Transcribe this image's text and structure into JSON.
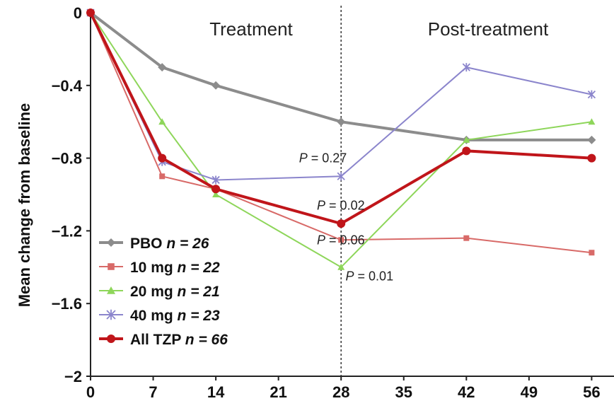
{
  "chart_data": {
    "type": "line",
    "ylabel": "Mean change from baseline",
    "x": [
      0,
      7,
      14,
      21,
      28,
      35,
      42,
      49,
      56
    ],
    "ylim": [
      -2,
      0
    ],
    "y_ticks": [
      0,
      -0.4,
      -0.8,
      -1.2,
      -1.6,
      -2
    ],
    "y_tick_labels": [
      "0",
      "−0.4",
      "−0.8",
      "−1.2",
      "−1.6",
      "−2"
    ],
    "region_labels": [
      "Treatment",
      "Post-treatment"
    ],
    "divider_x": 28,
    "series": [
      {
        "name": "PBO",
        "n_label": "n = 26",
        "color": "#8c8c8c",
        "marker": "diamond",
        "x": [
          0,
          8,
          14,
          28,
          42,
          56
        ],
        "values": [
          0,
          -0.3,
          -0.4,
          -0.6,
          -0.7,
          -0.7
        ]
      },
      {
        "name": "10 mg",
        "n_label": "n = 22",
        "color": "#d86a68",
        "marker": "square",
        "x": [
          0,
          8,
          14,
          28,
          42,
          56
        ],
        "values": [
          0,
          -0.9,
          -0.97,
          -1.25,
          -1.24,
          -1.32
        ]
      },
      {
        "name": "20 mg",
        "n_label": "n = 21",
        "color": "#8ed65a",
        "marker": "triangle",
        "x": [
          0,
          8,
          14,
          28,
          42,
          56
        ],
        "values": [
          0,
          -0.6,
          -1.0,
          -1.4,
          -0.7,
          -0.6
        ]
      },
      {
        "name": "40 mg",
        "n_label": "n = 23",
        "color": "#8b85cc",
        "marker": "star",
        "x": [
          0,
          8,
          14,
          28,
          42,
          56
        ],
        "values": [
          0,
          -0.82,
          -0.92,
          -0.9,
          -0.3,
          -0.45
        ]
      },
      {
        "name": "All TZP",
        "n_label": "n = 66",
        "color": "#c0151a",
        "marker": "circle",
        "x": [
          0,
          8,
          14,
          28,
          42,
          56
        ],
        "values": [
          0,
          -0.8,
          -0.97,
          -1.16,
          -0.76,
          -0.8
        ]
      }
    ],
    "annotations": [
      {
        "p": "P",
        "text": " = 0.27",
        "x": 23.3,
        "y": -0.8
      },
      {
        "p": "P",
        "text": " = 0.02",
        "x": 25.3,
        "y": -1.06
      },
      {
        "p": "P",
        "text": " = 0.06",
        "x": 25.3,
        "y": -1.25
      },
      {
        "p": "P",
        "text": " = 0.01",
        "x": 28.5,
        "y": -1.45
      }
    ]
  }
}
